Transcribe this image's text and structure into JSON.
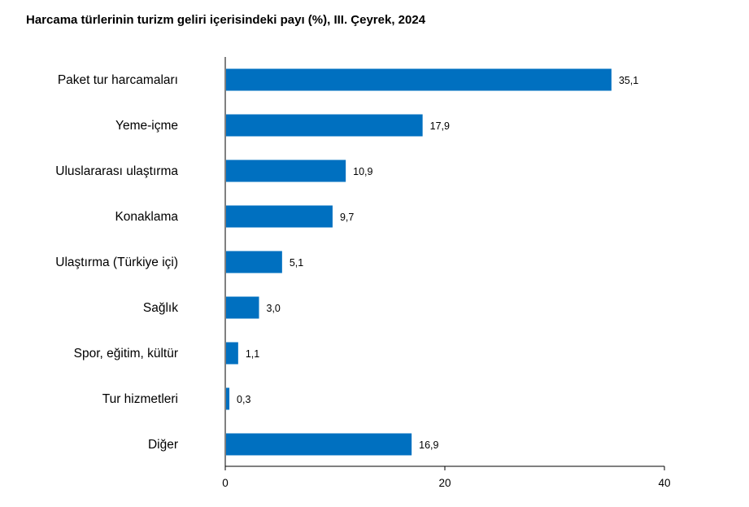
{
  "chart_data": {
    "type": "bar",
    "orientation": "horizontal",
    "title": "Harcama türlerinin turizm geliri içerisindeki payı (%), III. Çeyrek, 2024",
    "categories": [
      "Paket tur harcamaları",
      "Yeme-içme",
      "Uluslararası ulaştırma",
      "Konaklama",
      "Ulaştırma (Türkiye içi)",
      "Sağlık",
      "Spor, eğitim, kültür",
      "Tur hizmetleri",
      "Diğer"
    ],
    "values": [
      35.1,
      17.9,
      10.9,
      9.7,
      5.1,
      3.0,
      1.1,
      0.3,
      16.9
    ],
    "value_labels": [
      "35,1",
      "17,9",
      "10,9",
      "9,7",
      "5,1",
      "3,0",
      "1,1",
      "0,3",
      "16,9"
    ],
    "xticks": [
      0,
      20,
      40
    ],
    "xtick_labels": [
      "0",
      "20",
      "40"
    ],
    "xlim": [
      0,
      40
    ],
    "bar_color": "#0070c0",
    "grid": false,
    "legend": "none"
  }
}
